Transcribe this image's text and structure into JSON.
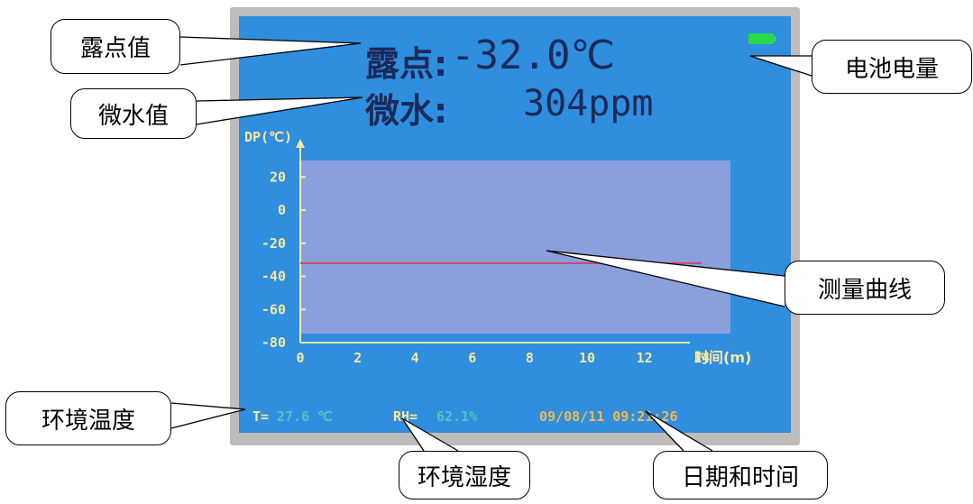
{
  "device": {
    "dew_point_label": "露点:",
    "dew_point_value": "-32.0℃",
    "micro_water_label": "微水:",
    "micro_water_value": "304ppm",
    "ambient_temp_label": "T=",
    "ambient_temp_value": "27.6 ℃",
    "ambient_rh_label": "RH=",
    "ambient_rh_value": "62.1%",
    "datetime": "09/08/11 09:21:26",
    "battery_color": "#29d84a",
    "screen_color": "#2f8ede",
    "plot_color": "#8c9fdd",
    "curve_color": "#c64a6e"
  },
  "callouts": {
    "dew_point": "露点值",
    "micro_water": "微水值",
    "battery": "电池电量",
    "curve": "测量曲线",
    "ambient_temp": "环境温度",
    "ambient_rh": "环境湿度",
    "datetime": "日期和时间"
  },
  "chart_data": {
    "type": "line",
    "ylabel": "DP(℃)",
    "xlabel": "时间(m)",
    "y_ticks": [
      "20",
      "0",
      "-20",
      "-40",
      "-60",
      "-80"
    ],
    "x_ticks": [
      "0",
      "2",
      "4",
      "6",
      "8",
      "10",
      "12",
      "14"
    ],
    "ylim": [
      -80,
      30
    ],
    "xlim": [
      0,
      15
    ],
    "series": [
      {
        "x": [
          0,
          2,
          4,
          6,
          8,
          10,
          12,
          14
        ],
        "values": [
          -32,
          -32,
          -32,
          -32,
          -32,
          -32,
          -32,
          -32
        ]
      }
    ]
  }
}
